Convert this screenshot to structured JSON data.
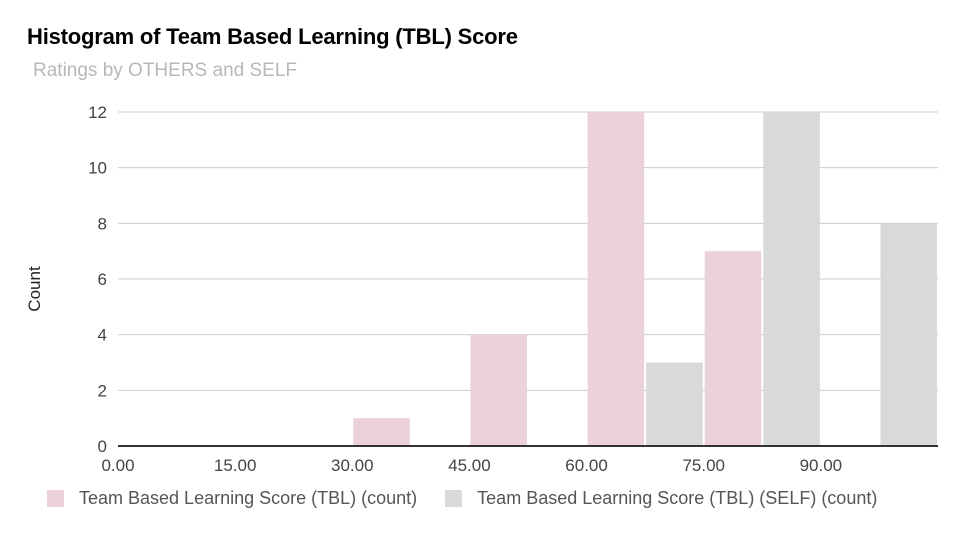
{
  "chart_data": {
    "type": "bar",
    "title": "Histogram of Team Based Learning (TBL) Score",
    "subtitle": "Ratings by OTHERS and SELF",
    "ylabel": "Count",
    "xlabel": "",
    "ylim": [
      0,
      12
    ],
    "yticks": [
      "0",
      "2",
      "4",
      "6",
      "8",
      "10",
      "12"
    ],
    "xticks": [
      "0.00",
      "15.00",
      "30.00",
      "45.00",
      "60.00",
      "75.00",
      "90.00"
    ],
    "xlim": [
      0,
      105
    ],
    "bin_width": 7.5,
    "grid": true,
    "legend_position": "bottom",
    "series": [
      {
        "name": "Team Based Learning Score (TBL) (count)",
        "color": "#ead1dc",
        "bins": [
          {
            "x0": 30,
            "x1": 37.5,
            "count": 1
          },
          {
            "x0": 45,
            "x1": 52.5,
            "count": 4
          },
          {
            "x0": 60,
            "x1": 67.5,
            "count": 12
          },
          {
            "x0": 75,
            "x1": 82.5,
            "count": 7
          }
        ]
      },
      {
        "name": "Team Based Learning Score (TBL) (SELF) (count)",
        "color": "#d9d9d9",
        "bins": [
          {
            "x0": 67.5,
            "x1": 75,
            "count": 3
          },
          {
            "x0": 82.5,
            "x1": 90,
            "count": 12
          },
          {
            "x0": 97.5,
            "x1": 105,
            "count": 8
          }
        ]
      }
    ]
  }
}
